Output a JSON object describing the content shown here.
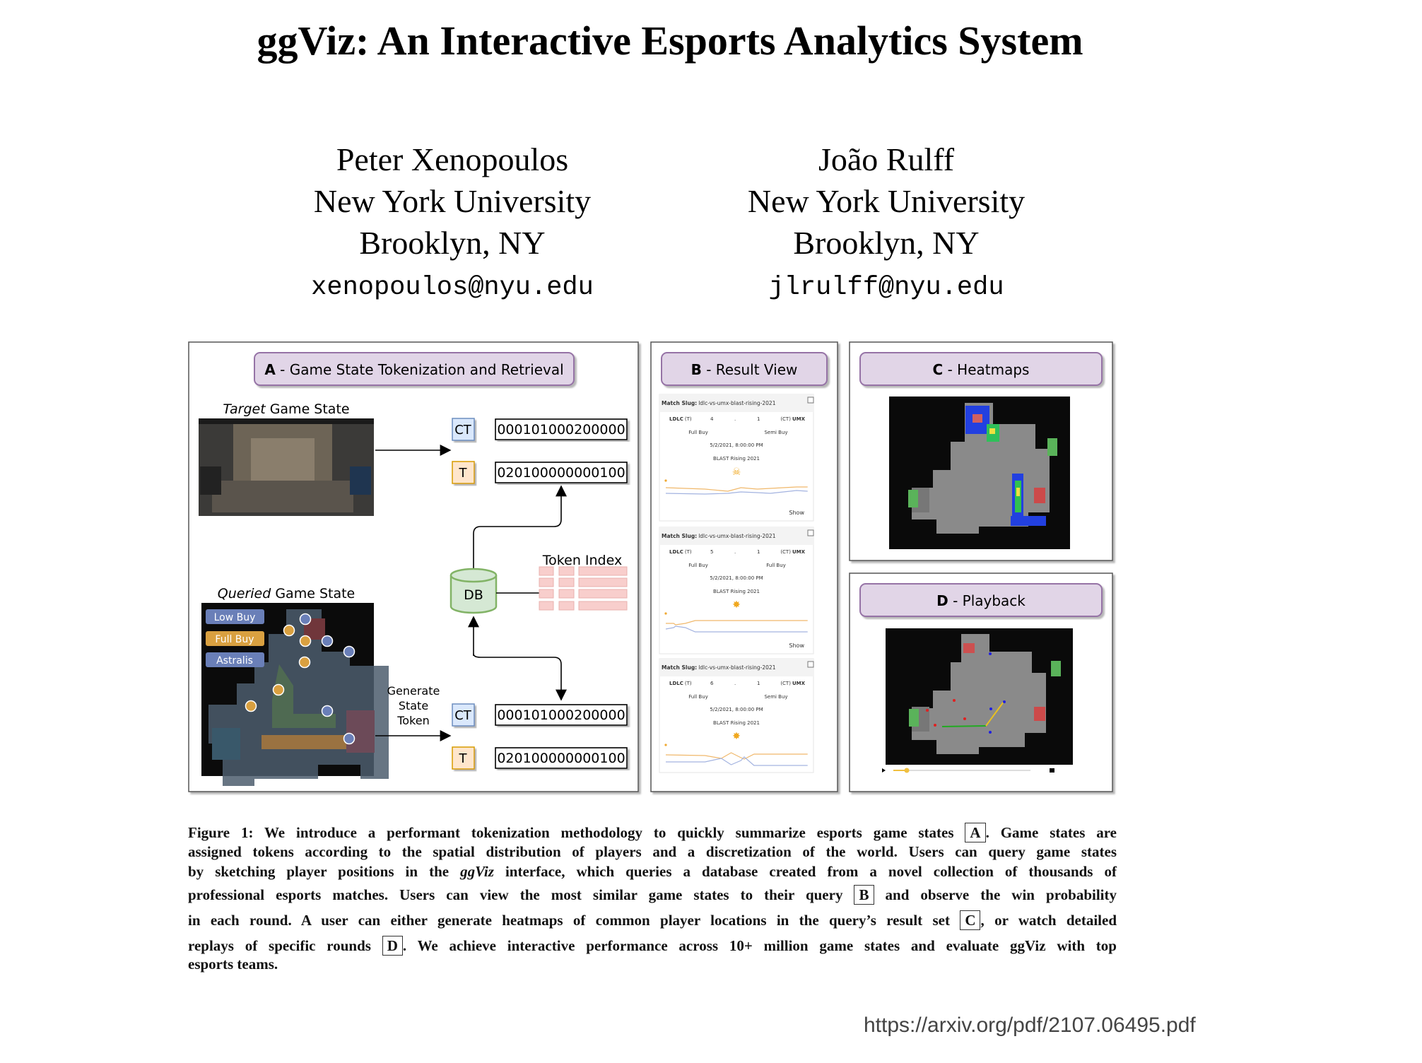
{
  "title": "ggViz: An Interactive Esports Analytics System",
  "authors": [
    {
      "name": "Peter Xenopoulos",
      "affiliation": "New York University",
      "location": "Brooklyn, NY",
      "email": "xenopoulos@nyu.edu"
    },
    {
      "name": "João Rulff",
      "affiliation": "New York University",
      "location": "Brooklyn, NY",
      "email": "jlrulff@nyu.edu"
    }
  ],
  "figure": {
    "panel_a": {
      "letter": "A",
      "title": " - Game State Tokenization and Retrieval",
      "target_label_italic": "Target",
      "target_label_rest": " Game State",
      "queried_label_italic": "Queried",
      "queried_label_rest": " Game State",
      "ct_label": "CT",
      "t_label": "T",
      "ct_token": "000101000200000",
      "t_token": "020100000000100",
      "db_label": "DB",
      "token_index_label": "Token Index",
      "generate_label": [
        "Generate",
        "State",
        "Token"
      ],
      "legend": [
        "Low Buy",
        "Full Buy",
        "Astralis"
      ]
    },
    "panel_b": {
      "letter": "B",
      "title": " - Result View",
      "cards": [
        {
          "slug_label": "Match Slug:",
          "slug": "ldlc-vs-umx-blast-rising-2021",
          "team_a": "LDLC",
          "side_a": "(T)",
          "score_a": "4",
          "sep": ".",
          "score_b": "1",
          "side_b": "(CT)",
          "team_b": "UMX",
          "buy_a": "Full Buy",
          "buy_b": "Semi Buy",
          "date": "5/2/2021, 8:00:00 PM",
          "event": "BLAST Rising 2021",
          "icon": "skull-icon",
          "show": "Show"
        },
        {
          "slug_label": "Match Slug:",
          "slug": "ldlc-vs-umx-blast-rising-2021",
          "team_a": "LDLC",
          "side_a": "(T)",
          "score_a": "5",
          "sep": ".",
          "score_b": "1",
          "side_b": "(CT)",
          "team_b": "UMX",
          "buy_a": "Full Buy",
          "buy_b": "Full Buy",
          "date": "5/2/2021, 8:00:00 PM",
          "event": "BLAST Rising 2021",
          "icon": "explosion-icon",
          "show": "Show"
        },
        {
          "slug_label": "Match Slug:",
          "slug": "ldlc-vs-umx-blast-rising-2021",
          "team_a": "LDLC",
          "side_a": "(T)",
          "score_a": "6",
          "sep": ".",
          "score_b": "1",
          "side_b": "(CT)",
          "team_b": "UMX",
          "buy_a": "Full Buy",
          "buy_b": "Semi Buy",
          "date": "5/2/2021, 8:00:00 PM",
          "event": "BLAST Rising 2021",
          "icon": "explosion-icon",
          "show": ""
        }
      ]
    },
    "panel_c": {
      "letter": "C",
      "title": " - Heatmaps"
    },
    "panel_d": {
      "letter": "D",
      "title": " - Playback"
    },
    "colors": {
      "title_fill": "#e1d5e7",
      "title_stroke": "#9673a6",
      "ct_fill": "#dae8fc",
      "ct_stroke": "#6c8ebf",
      "t_fill": "#ffe6cc",
      "t_stroke": "#d79b00",
      "db_fill": "#d5e8d4",
      "db_stroke": "#82b366",
      "index_fill": "#f8cecc",
      "low_buy": "#6a7fb8",
      "full_buy": "#d9a040",
      "astralis": "#6a7fb8"
    }
  },
  "caption": {
    "lines": [
      [
        {
          "t": "Figure 1: We introduce a performant tokenization methodology to quickly summarize esports game states "
        },
        {
          "t": "A",
          "box": true
        },
        {
          "t": ". Game states are"
        }
      ],
      [
        {
          "t": "assigned tokens according to the spatial distribution of players and a discretization of the world. Users can query game states"
        }
      ],
      [
        {
          "t": "by sketching player positions in the "
        },
        {
          "t": "ggViz",
          "i": true
        },
        {
          "t": " interface, which queries a database created from a novel collection of thousands of"
        }
      ],
      [
        {
          "t": "professional esports matches. Users can view the most similar game states to their query "
        },
        {
          "t": "B",
          "box": true
        },
        {
          "t": " and observe the win probability"
        }
      ],
      [
        {
          "t": "in each round. A user can either generate heatmaps of common player locations in the query’s result set "
        },
        {
          "t": "C",
          "box": true
        },
        {
          "t": ", or watch detailed"
        }
      ],
      [
        {
          "t": "replays of specific rounds "
        },
        {
          "t": "D",
          "box": true
        },
        {
          "t": ". We achieve interactive performance across 10+ million game states and evaluate ggViz with top"
        }
      ],
      [
        {
          "t": "esports teams."
        }
      ]
    ]
  },
  "source_url": "https://arxiv.org/pdf/2107.06495.pdf"
}
